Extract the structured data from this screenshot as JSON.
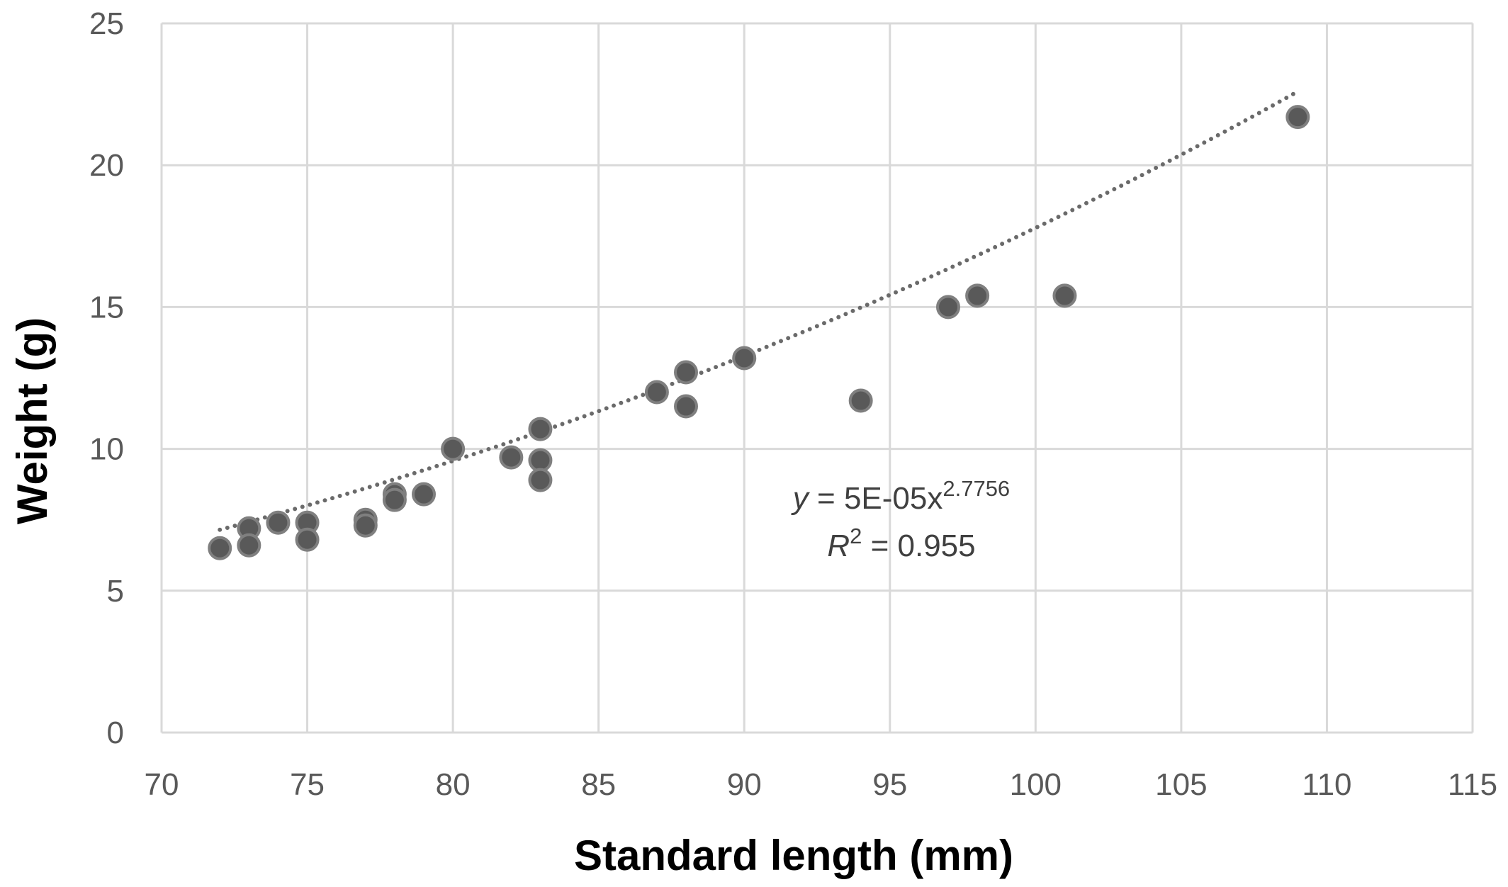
{
  "chart_data": {
    "type": "scatter",
    "title": "",
    "xlabel": "Standard length (mm)",
    "ylabel": "Weight (g)",
    "xlim": [
      70,
      115
    ],
    "ylim": [
      0,
      25
    ],
    "xticks": [
      70,
      75,
      80,
      85,
      90,
      95,
      100,
      105,
      110,
      115
    ],
    "yticks": [
      0,
      5,
      10,
      15,
      20,
      25
    ],
    "grid": true,
    "legend": "none",
    "colors": {
      "points": "#595959",
      "point_edge": "#7f7f7f",
      "trendline": "#6a6a6a",
      "grid": "#d9d9d9"
    },
    "series": [
      {
        "points": [
          [
            72,
            6.5
          ],
          [
            73,
            7.2
          ],
          [
            73,
            6.6
          ],
          [
            74,
            7.4
          ],
          [
            75,
            7.4
          ],
          [
            75,
            6.8
          ],
          [
            77,
            7.5
          ],
          [
            77,
            7.3
          ],
          [
            78,
            8.4
          ],
          [
            78,
            8.2
          ],
          [
            79,
            8.4
          ],
          [
            80,
            10.0
          ],
          [
            82,
            9.7
          ],
          [
            83,
            10.7
          ],
          [
            83,
            9.6
          ],
          [
            83,
            8.9
          ],
          [
            87,
            12.0
          ],
          [
            88,
            12.7
          ],
          [
            88,
            11.5
          ],
          [
            90,
            13.2
          ],
          [
            94,
            11.7
          ],
          [
            97,
            15.0
          ],
          [
            98,
            15.4
          ],
          [
            101,
            15.4
          ],
          [
            109,
            21.7
          ]
        ]
      }
    ],
    "trendline": {
      "type": "power",
      "coefficient": 5e-05,
      "exponent": 2.7756,
      "x_range": [
        72,
        109
      ],
      "equation": {
        "y_var": "y",
        "rhs": " = 5E-05x",
        "exponent_label": "2.7756",
        "r_var": "R",
        "r_sup": "2",
        "r_rhs": " = 0.955"
      }
    }
  }
}
